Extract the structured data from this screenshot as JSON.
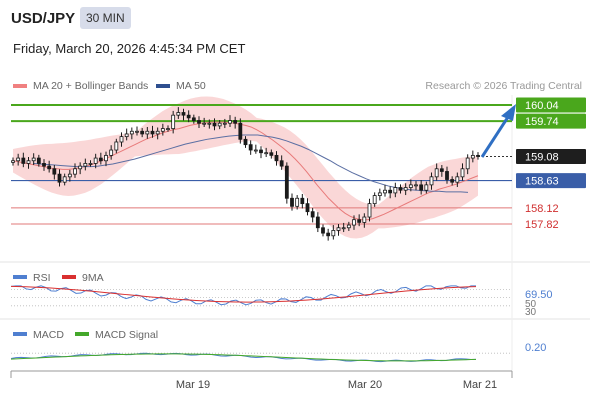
{
  "header": {
    "symbol": "USD/JPY",
    "timeframe": "30 MIN",
    "timestamp": "Friday, March 20, 2026 4:45:34 PM CET"
  },
  "legend": {
    "ma20_label": "MA 20 + Bollinger Bands",
    "ma50_label": "MA 50",
    "credit": "Research © 2026 Trading Central",
    "rsi_label": "RSI",
    "rsi_ma_label": "9MA",
    "macd_label": "MACD",
    "macd_signal_label": "MACD Signal"
  },
  "colors": {
    "candle": "#1a1a1a",
    "ma20": "#e87a7a",
    "bollinger_fill": "#f9d0d0",
    "ma50": "#5b6fa3",
    "resistance": "#4aa71c",
    "support_blue": "#3a5ea8",
    "support_red": "#e07878",
    "arrow": "#2f6fc3",
    "rsi": "#4f7fd0",
    "rsi_ma": "#d93030",
    "macd": "#4f7fd0",
    "macd_signal": "#44a82a"
  },
  "chart_data": [
    {
      "type": "candlestick",
      "title": "USD/JPY 30 MIN",
      "x_tick_labels": [
        "Mar 19",
        "Mar 20",
        "Mar 21"
      ],
      "ylim": [
        157.65,
        160.15
      ],
      "grid": false,
      "levels": [
        {
          "value": 160.04,
          "label": "160.04",
          "kind": "resistance"
        },
        {
          "value": 159.74,
          "label": "159.74",
          "kind": "resistance"
        },
        {
          "value": 159.08,
          "label": "159.08",
          "kind": "last_price"
        },
        {
          "value": 158.63,
          "label": "158.63",
          "kind": "support"
        },
        {
          "value": 158.12,
          "label": "158.12",
          "kind": "support"
        },
        {
          "value": 157.82,
          "label": "157.82",
          "kind": "support"
        }
      ],
      "close": [
        159.0,
        159.05,
        158.95,
        159.0,
        159.05,
        158.95,
        158.9,
        158.85,
        158.75,
        158.6,
        158.7,
        158.75,
        158.85,
        158.9,
        158.95,
        158.95,
        159.05,
        159.0,
        159.1,
        159.2,
        159.35,
        159.45,
        159.5,
        159.55,
        159.55,
        159.5,
        159.55,
        159.5,
        159.55,
        159.6,
        159.6,
        159.85,
        159.9,
        159.85,
        159.8,
        159.75,
        159.7,
        159.7,
        159.7,
        159.65,
        159.7,
        159.7,
        159.75,
        159.7,
        159.4,
        159.3,
        159.2,
        159.2,
        159.15,
        159.15,
        159.1,
        159.0,
        158.9,
        158.3,
        158.15,
        158.3,
        158.2,
        158.05,
        157.95,
        157.75,
        157.65,
        157.6,
        157.7,
        157.75,
        157.75,
        157.8,
        157.9,
        157.85,
        157.95,
        158.2,
        158.35,
        158.4,
        158.45,
        158.4,
        158.5,
        158.45,
        158.5,
        158.55,
        158.55,
        158.45,
        158.55,
        158.7,
        158.85,
        158.8,
        158.65,
        158.6,
        158.7,
        158.85,
        159.05,
        159.1,
        159.08
      ],
      "ma20": [
        159.0,
        158.98,
        158.96,
        158.94,
        158.92,
        158.9,
        158.88,
        158.86,
        158.85,
        158.84,
        158.84,
        158.85,
        158.87,
        158.89,
        158.92,
        158.96,
        159.0,
        159.05,
        159.1,
        159.15,
        159.2,
        159.25,
        159.3,
        159.35,
        159.4,
        159.44,
        159.48,
        159.52,
        159.55,
        159.58,
        159.6,
        159.63,
        159.66,
        159.68,
        159.7,
        159.71,
        159.72,
        159.72,
        159.72,
        159.71,
        159.7,
        159.68,
        159.66,
        159.63,
        159.58,
        159.52,
        159.45,
        159.38,
        159.3,
        159.22,
        159.13,
        159.03,
        158.92,
        158.8,
        158.67,
        158.54,
        158.42,
        158.3,
        158.2,
        158.1,
        158.02,
        157.96,
        157.92,
        157.9,
        157.9,
        157.92,
        157.96,
        158.0,
        158.05,
        158.1,
        158.15,
        158.2,
        158.25,
        158.3,
        158.35,
        158.4,
        158.43,
        158.47,
        158.5,
        158.53,
        158.56,
        158.6,
        158.64,
        158.68,
        158.72
      ],
      "ma50": [
        158.95,
        158.94,
        158.93,
        158.92,
        158.91,
        158.9,
        158.89,
        158.89,
        158.89,
        158.9,
        158.92,
        158.94,
        158.97,
        159.0,
        159.03,
        159.07,
        159.11,
        159.15,
        159.19,
        159.23,
        159.27,
        159.31,
        159.34,
        159.37,
        159.4,
        159.42,
        159.44,
        159.46,
        159.47,
        159.48,
        159.48,
        159.48,
        159.46,
        159.44,
        159.41,
        159.37,
        159.32,
        159.27,
        159.21,
        159.14,
        159.07,
        159.0,
        158.92,
        158.85,
        158.78,
        158.72,
        158.66,
        158.61,
        158.57,
        158.53,
        158.5,
        158.48,
        158.46,
        158.45,
        158.44,
        158.43,
        158.43,
        158.42,
        158.42,
        158.42,
        158.41
      ]
    },
    {
      "type": "line",
      "title": "RSI",
      "series": [
        {
          "name": "RSI"
        },
        {
          "name": "9MA"
        }
      ],
      "last_value": 69.5,
      "levels": [
        {
          "value": 50,
          "label": "50"
        },
        {
          "value": 30,
          "label": "30"
        }
      ],
      "value_label": "69.50",
      "ylim": [
        20,
        80
      ]
    },
    {
      "type": "line",
      "title": "MACD",
      "series": [
        {
          "name": "MACD"
        },
        {
          "name": "MACD Signal"
        }
      ],
      "value_label": "0.20",
      "ylim": [
        -0.5,
        0.5
      ]
    }
  ],
  "price_labels": {
    "p160_04": "160.04",
    "p159_74": "159.74",
    "p159_08": "159.08",
    "p158_63": "158.63",
    "p158_12": "158.12",
    "p157_82": "157.82",
    "rsi_value": "69.50",
    "rsi_50": "50",
    "rsi_30": "30",
    "macd_value": "0.20"
  },
  "x_axis": {
    "mar19": "Mar 19",
    "mar20": "Mar 20",
    "mar21": "Mar 21"
  }
}
